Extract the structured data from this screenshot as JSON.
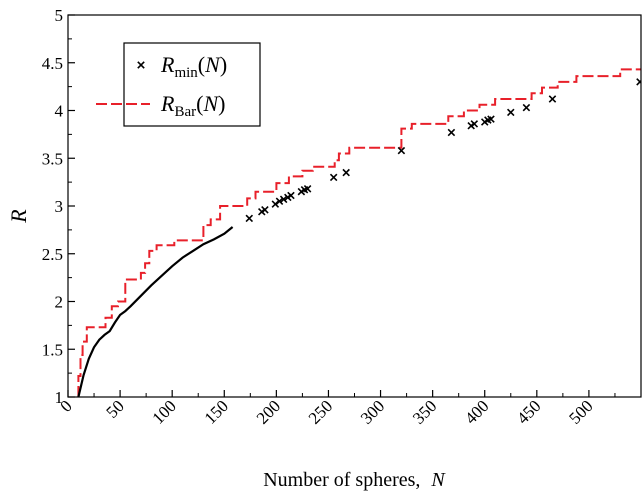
{
  "chart_data": {
    "type": "line",
    "xlabel": "Number of spheres,",
    "xlabel_var": "N",
    "ylabel": "R",
    "xlim": [
      0,
      550
    ],
    "ylim": [
      1,
      5
    ],
    "x_ticks": [
      0,
      50,
      100,
      150,
      200,
      250,
      300,
      350,
      400,
      450,
      500
    ],
    "x_tick_labels": [
      "0",
      "50",
      "100",
      "150",
      "200",
      "250",
      "300",
      "350",
      "400",
      "450",
      "500"
    ],
    "y_ticks": [
      1,
      1.5,
      2,
      2.5,
      3,
      3.5,
      4,
      4.5,
      5
    ],
    "y_tick_labels": [
      "1",
      "1.5",
      "2",
      "2.5",
      "3",
      "3.5",
      "4",
      "4.5",
      "5"
    ],
    "grid": false,
    "legend_position": "top-left",
    "legend": [
      {
        "sym": "R",
        "sub": "min",
        "arg": "(N)",
        "marker": "x",
        "color": "#000000"
      },
      {
        "sym": "R",
        "sub": "Bar",
        "arg": "(N)",
        "marker": "dashed-line",
        "color": "#e8202a"
      }
    ],
    "series": [
      {
        "type": "step",
        "color": "#e8202a",
        "dashed": true,
        "points": [
          [
            10,
            1.0
          ],
          [
            10,
            1.22
          ],
          [
            12,
            1.22
          ],
          [
            12,
            1.44
          ],
          [
            14,
            1.44
          ],
          [
            14,
            1.58
          ],
          [
            18,
            1.58
          ],
          [
            18,
            1.73
          ],
          [
            36,
            1.73
          ],
          [
            36,
            1.83
          ],
          [
            42,
            1.83
          ],
          [
            42,
            1.95
          ],
          [
            48,
            1.95
          ],
          [
            48,
            2.0
          ],
          [
            55,
            2.0
          ],
          [
            55,
            2.23
          ],
          [
            70,
            2.23
          ],
          [
            70,
            2.3
          ],
          [
            74,
            2.3
          ],
          [
            74,
            2.4
          ],
          [
            78,
            2.4
          ],
          [
            78,
            2.53
          ],
          [
            85,
            2.53
          ],
          [
            85,
            2.59
          ],
          [
            102,
            2.59
          ],
          [
            102,
            2.64
          ],
          [
            130,
            2.64
          ],
          [
            130,
            2.8
          ],
          [
            137,
            2.8
          ],
          [
            137,
            2.86
          ],
          [
            146,
            2.86
          ],
          [
            146,
            3.0
          ],
          [
            172,
            3.0
          ],
          [
            172,
            3.08
          ],
          [
            180,
            3.08
          ],
          [
            180,
            3.15
          ],
          [
            200,
            3.15
          ],
          [
            200,
            3.24
          ],
          [
            212,
            3.24
          ],
          [
            212,
            3.31
          ],
          [
            225,
            3.31
          ],
          [
            225,
            3.37
          ],
          [
            235,
            3.37
          ],
          [
            235,
            3.41
          ],
          [
            256,
            3.41
          ],
          [
            256,
            3.48
          ],
          [
            260,
            3.48
          ],
          [
            260,
            3.55
          ],
          [
            270,
            3.55
          ],
          [
            270,
            3.61
          ],
          [
            320,
            3.61
          ],
          [
            320,
            3.81
          ],
          [
            330,
            3.81
          ],
          [
            330,
            3.86
          ],
          [
            365,
            3.86
          ],
          [
            365,
            3.94
          ],
          [
            380,
            3.94
          ],
          [
            380,
            4.0
          ],
          [
            395,
            4.0
          ],
          [
            395,
            4.06
          ],
          [
            410,
            4.06
          ],
          [
            410,
            4.12
          ],
          [
            445,
            4.12
          ],
          [
            445,
            4.18
          ],
          [
            455,
            4.18
          ],
          [
            455,
            4.24
          ],
          [
            470,
            4.24
          ],
          [
            470,
            4.3
          ],
          [
            488,
            4.3
          ],
          [
            488,
            4.36
          ],
          [
            530,
            4.36
          ],
          [
            530,
            4.43
          ],
          [
            550,
            4.43
          ]
        ]
      },
      {
        "type": "line",
        "color": "#000000",
        "dashed": false,
        "points": [
          [
            10,
            1.0
          ],
          [
            15,
            1.23
          ],
          [
            20,
            1.4
          ],
          [
            25,
            1.52
          ],
          [
            30,
            1.6
          ],
          [
            35,
            1.65
          ],
          [
            40,
            1.69
          ],
          [
            45,
            1.78
          ],
          [
            50,
            1.86
          ],
          [
            55,
            1.9
          ],
          [
            60,
            1.95
          ],
          [
            70,
            2.06
          ],
          [
            80,
            2.17
          ],
          [
            90,
            2.27
          ],
          [
            100,
            2.37
          ],
          [
            110,
            2.46
          ],
          [
            120,
            2.53
          ],
          [
            130,
            2.6
          ],
          [
            140,
            2.65
          ],
          [
            150,
            2.71
          ],
          [
            158,
            2.78
          ]
        ]
      },
      {
        "type": "scatter",
        "marker": "x",
        "color": "#000000",
        "points": [
          [
            174,
            2.87
          ],
          [
            186,
            2.94
          ],
          [
            189,
            2.96
          ],
          [
            199,
            3.02
          ],
          [
            203,
            3.05
          ],
          [
            207,
            3.07
          ],
          [
            211,
            3.09
          ],
          [
            214,
            3.11
          ],
          [
            224,
            3.15
          ],
          [
            227,
            3.17
          ],
          [
            230,
            3.18
          ],
          [
            255,
            3.3
          ],
          [
            267,
            3.35
          ],
          [
            320,
            3.58
          ],
          [
            368,
            3.77
          ],
          [
            387,
            3.84
          ],
          [
            390,
            3.86
          ],
          [
            400,
            3.88
          ],
          [
            403,
            3.9
          ],
          [
            406,
            3.91
          ],
          [
            425,
            3.98
          ],
          [
            440,
            4.03
          ],
          [
            465,
            4.12
          ],
          [
            549,
            4.3
          ]
        ]
      }
    ]
  }
}
